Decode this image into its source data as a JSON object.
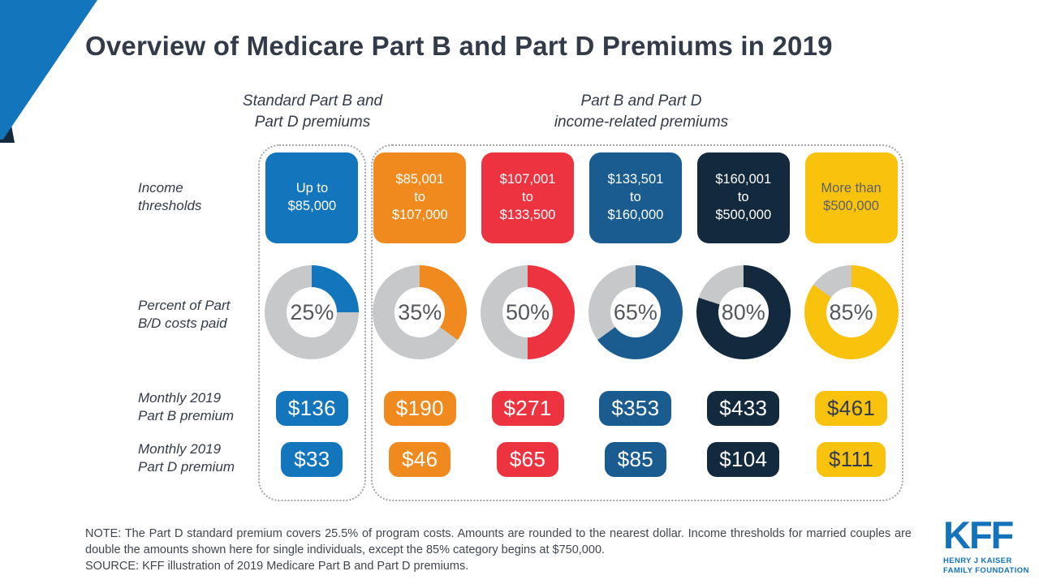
{
  "page": {
    "title": "Overview of Medicare Part B and Part D Premiums in 2019"
  },
  "groups": {
    "standard": "Standard Part B and\nPart D premiums",
    "income_related": "Part B and Part D\nincome-related premiums"
  },
  "row_labels": {
    "thresholds": "Income\nthresholds",
    "percent": "Percent of Part\nB/D costs paid",
    "part_b": "Monthly 2019\nPart B premium",
    "part_d": "Monthly 2019\nPart D premium"
  },
  "donut": {
    "remainder_color": "#c7c8ca",
    "label_color": "#55575c"
  },
  "columns": [
    {
      "threshold": "Up to\n$85,000",
      "percent": 25,
      "percent_label": "25%",
      "part_b": "$136",
      "part_d": "$33",
      "color": "#1375bc",
      "threshold_text_color": "#ffffff",
      "pill_text_color": "#ffffff"
    },
    {
      "threshold": "$85,001\nto\n$107,000",
      "percent": 35,
      "percent_label": "35%",
      "part_b": "$190",
      "part_d": "$46",
      "color": "#f18a1e",
      "threshold_text_color": "#ffffff",
      "pill_text_color": "#ffffff"
    },
    {
      "threshold": "$107,001\nto\n$133,500",
      "percent": 50,
      "percent_label": "50%",
      "part_b": "$271",
      "part_d": "$65",
      "color": "#ee3340",
      "threshold_text_color": "#ffffff",
      "pill_text_color": "#ffffff"
    },
    {
      "threshold": "$133,501\nto\n$160,000",
      "percent": 65,
      "percent_label": "65%",
      "part_b": "$353",
      "part_d": "$85",
      "color": "#1a5c8f",
      "threshold_text_color": "#ffffff",
      "pill_text_color": "#ffffff"
    },
    {
      "threshold": "$160,001\nto\n$500,000",
      "percent": 80,
      "percent_label": "80%",
      "part_b": "$433",
      "part_d": "$104",
      "color": "#13293d",
      "threshold_text_color": "#ffffff",
      "pill_text_color": "#ffffff"
    },
    {
      "threshold": "More than\n$500,000",
      "percent": 85,
      "percent_label": "85%",
      "part_b": "$461",
      "part_d": "$111",
      "color": "#f9c20d",
      "threshold_text_color": "#5d6167",
      "pill_text_color": "#333b49"
    }
  ],
  "footer": {
    "note": "NOTE: The Part D standard premium covers 25.5% of program costs. Amounts are rounded to the nearest dollar. Income thresholds for married couples are double the amounts shown here for single individuals, except the 85% category begins at $750,000.",
    "source": "SOURCE: KFF illustration of 2019 Medicare Part B and Part D premiums."
  },
  "logo": {
    "wordmark": "KFF",
    "tagline": "HENRY J KAISER\nFAMILY FOUNDATION",
    "color": "#1374bc"
  },
  "chart_data": {
    "type": "table",
    "title": "Overview of Medicare Part B and Part D Premiums in 2019",
    "categories": [
      "Up to $85,000",
      "$85,001 to $107,000",
      "$107,001 to $133,500",
      "$133,501 to $160,000",
      "$160,001 to $500,000",
      "More than $500,000"
    ],
    "category_group_labels": [
      "Standard Part B and Part D premiums",
      "Part B and Part D income-related premiums"
    ],
    "category_groups": [
      [
        0
      ],
      [
        1,
        2,
        3,
        4,
        5
      ]
    ],
    "series": [
      {
        "name": "Percent of Part B/D costs paid",
        "unit": "%",
        "values": [
          25,
          35,
          50,
          65,
          80,
          85
        ],
        "render": "donut"
      },
      {
        "name": "Monthly 2019 Part B premium",
        "unit": "$",
        "values": [
          136,
          190,
          271,
          353,
          433,
          461
        ],
        "render": "pill"
      },
      {
        "name": "Monthly 2019 Part D premium",
        "unit": "$",
        "values": [
          33,
          46,
          65,
          85,
          104,
          111
        ],
        "render": "pill"
      }
    ],
    "category_colors": [
      "#1375bc",
      "#f18a1e",
      "#ee3340",
      "#1a5c8f",
      "#13293d",
      "#f9c20d"
    ],
    "donut_remainder_color": "#c7c8ca",
    "legend_position": "none",
    "grid": false
  }
}
